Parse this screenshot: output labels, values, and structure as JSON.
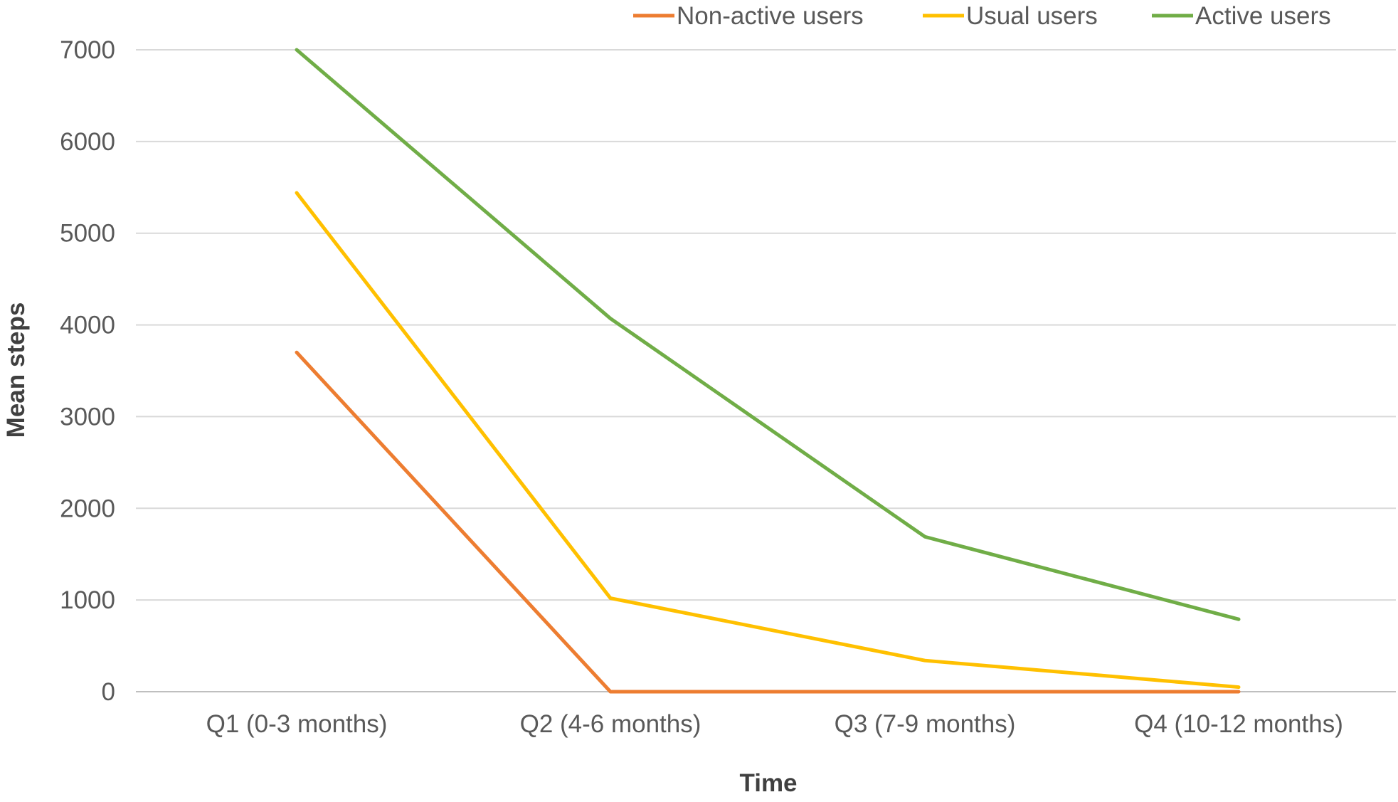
{
  "chart_data": {
    "type": "line",
    "title": "",
    "xlabel": "Time",
    "ylabel": "Mean steps",
    "categories": [
      "Q1 (0-3 months)",
      "Q2 (4-6 months)",
      "Q3 (7-9 months)",
      "Q4 (10-12 months)"
    ],
    "ylim": [
      0,
      7000
    ],
    "yticks": [
      0,
      1000,
      2000,
      3000,
      4000,
      5000,
      6000,
      7000
    ],
    "grid": true,
    "legend": "top-right",
    "series": [
      {
        "name": "Non-active users",
        "color": "#ED7D31",
        "values": [
          3700,
          0,
          0,
          0
        ]
      },
      {
        "name": "Usual users",
        "color": "#FFC000",
        "values": [
          5440,
          1020,
          340,
          50
        ]
      },
      {
        "name": "Active users",
        "color": "#70AD47",
        "values": [
          7000,
          4070,
          1690,
          790
        ]
      }
    ]
  }
}
